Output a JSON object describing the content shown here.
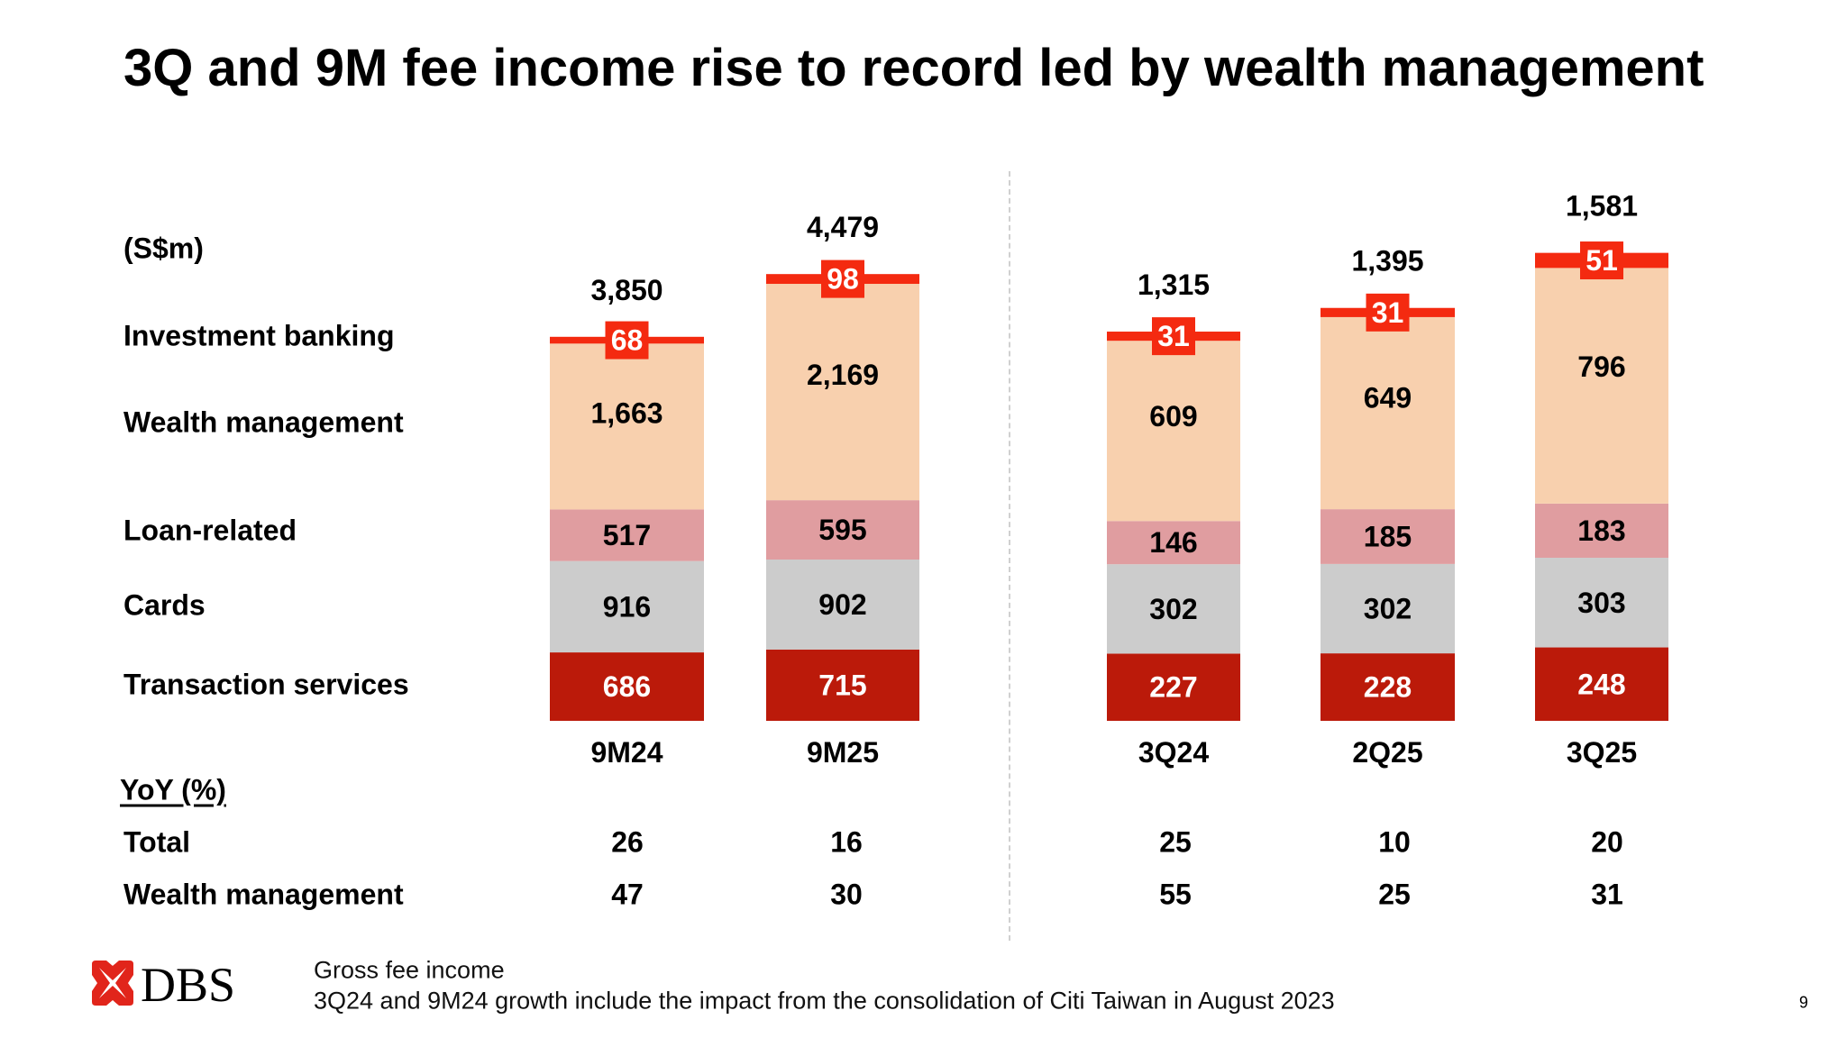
{
  "title": "3Q and 9M fee income rise to record led by wealth management",
  "row_labels": {
    "unit": "(S$m)",
    "investment_banking": "Investment banking",
    "wealth_management": "Wealth management",
    "loan_related": "Loan-related",
    "cards": "Cards",
    "transaction_services": "Transaction services"
  },
  "yoy": {
    "header": "YoY (%)",
    "total_label": "Total",
    "wm_label": "Wealth management",
    "total": [
      "26",
      "16",
      "25",
      "10",
      "20"
    ],
    "wm": [
      "47",
      "30",
      "55",
      "25",
      "31"
    ]
  },
  "chart_data": {
    "type": "bar",
    "stacked": true,
    "unit": "(S$m)",
    "categories": [
      "9M24",
      "9M25",
      "3Q24",
      "2Q25",
      "3Q25"
    ],
    "groups": [
      [
        "9M24",
        "9M25"
      ],
      [
        "3Q24",
        "2Q25",
        "3Q25"
      ]
    ],
    "series": [
      {
        "name": "Transaction services",
        "color": "#BB1A0A",
        "label_color": "#ffffff",
        "values": [
          686,
          715,
          227,
          228,
          248
        ]
      },
      {
        "name": "Cards",
        "color": "#CCCCCC",
        "label_color": "#000000",
        "values": [
          916,
          902,
          302,
          302,
          303
        ]
      },
      {
        "name": "Loan-related",
        "color": "#E09DA0",
        "label_color": "#000000",
        "values": [
          517,
          595,
          146,
          185,
          183
        ]
      },
      {
        "name": "Wealth management",
        "color": "#F8D0AE",
        "label_color": "#000000",
        "values": [
          1663,
          2169,
          609,
          649,
          796
        ]
      },
      {
        "name": "Investment banking",
        "color": "#F42A10",
        "label_color": "#ffffff",
        "values": [
          68,
          98,
          31,
          31,
          51
        ]
      }
    ],
    "totals": [
      "3,850",
      "4,479",
      "1,315",
      "1,395",
      "1,581"
    ],
    "value_labels": [
      [
        "686",
        "715",
        "227",
        "228",
        "248"
      ],
      [
        "916",
        "902",
        "302",
        "302",
        "303"
      ],
      [
        "517",
        "595",
        "146",
        "185",
        "183"
      ],
      [
        "1,663",
        "2,169",
        "609",
        "649",
        "796"
      ],
      [
        "68",
        "98",
        "31",
        "31",
        "51"
      ]
    ],
    "grid": false
  },
  "footer": {
    "logo_text": "DBS",
    "note1": "Gross fee income",
    "note2": "3Q24 and 9M24 growth include the impact from the consolidation of Citi Taiwan in August 2023",
    "page_number": "9"
  },
  "colors": {
    "brand_red": "#E1251B"
  }
}
